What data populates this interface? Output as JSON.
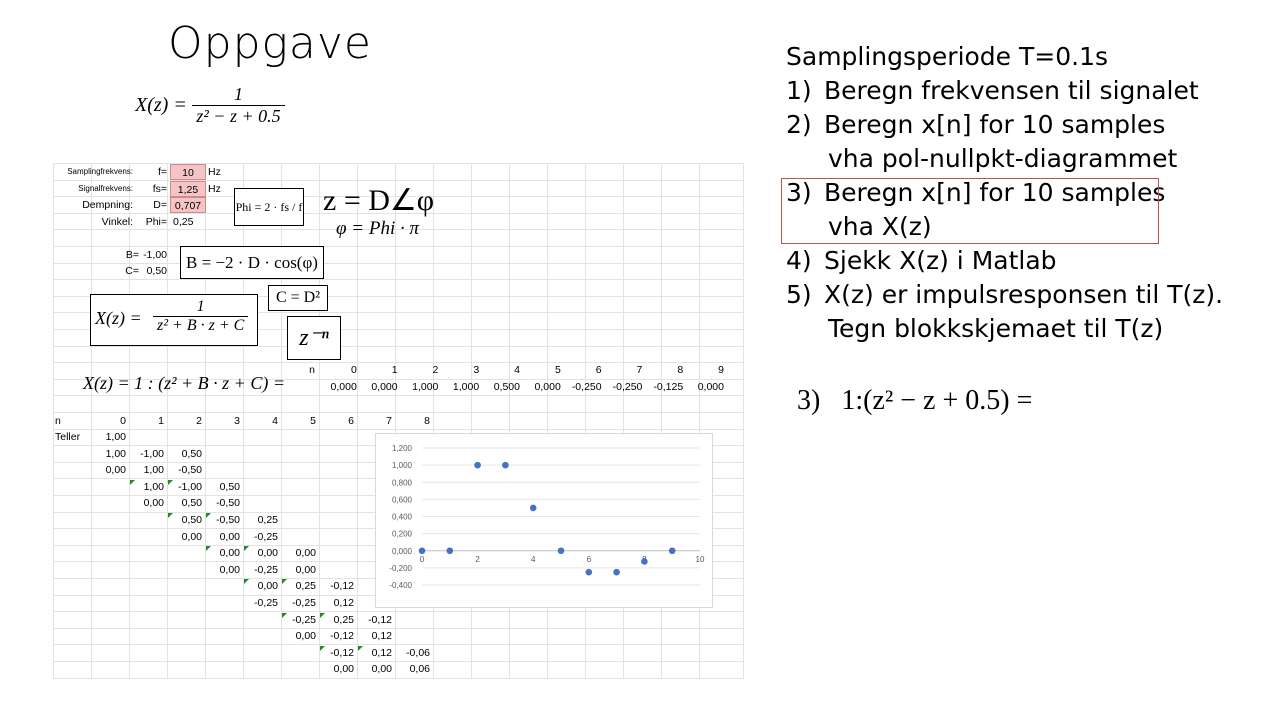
{
  "slide": {
    "title": "Oppgave"
  },
  "formula_top": {
    "lhs": "X(z) =",
    "numerator": "1",
    "denominator": "z² − z + 0.5"
  },
  "sheet": {
    "rows_top": [
      {
        "label": "Samplingfrekvens:",
        "var": "f=",
        "value": "10",
        "unit": "Hz"
      },
      {
        "label": "Signalfrekvens:",
        "var": "fs=",
        "value": "1,25",
        "unit": "Hz"
      },
      {
        "label": "Dempning:",
        "var": "D=",
        "value": "0,707",
        "unit": ""
      },
      {
        "label": "Vinkel:",
        "var": "Phi=",
        "value": "0,25",
        "unit": ""
      }
    ],
    "b_label": "B=",
    "b_value": "-1,00",
    "c_label": "C=",
    "c_value": "0,50",
    "phi_formula": "Phi = 2 · fs / f",
    "z_polar": "z = D∠φ",
    "phi_pi": "φ = Phi · π",
    "b_formula": "B = −2 · D · cos(φ)",
    "c_formula": "C = D²",
    "xz_formula": {
      "lhs": "X(z) =",
      "numerator": "1",
      "denominator": "z² + B · z + C"
    },
    "z_neg_n": "z⁻ⁿ",
    "xz_division": "X(z) = 1 : (z² + B · z + C) =",
    "n_header": "n",
    "result_n": [
      "0",
      "1",
      "2",
      "3",
      "4",
      "5",
      "6",
      "7",
      "8",
      "9"
    ],
    "result_x": [
      "0,000",
      "0,000",
      "1,000",
      "1,000",
      "0,500",
      "0,000",
      "-0,250",
      "-0,250",
      "-0,125",
      "0,000"
    ],
    "div_header_n": "n",
    "div_cols": [
      "0",
      "1",
      "2",
      "3",
      "4",
      "5",
      "6",
      "7",
      "8"
    ],
    "teller_label": "Teller",
    "div_rows": [
      [
        "1,00",
        "",
        "",
        "",
        "",
        "",
        "",
        ""
      ],
      [
        "1,00",
        "-1,00",
        "0,50",
        "",
        "",
        "",
        "",
        ""
      ],
      [
        "0,00",
        "1,00",
        "-0,50",
        "",
        "",
        "",
        "",
        ""
      ],
      [
        "",
        "1,00",
        "-1,00",
        "0,50",
        "",
        "",
        "",
        ""
      ],
      [
        "",
        "0,00",
        "0,50",
        "-0,50",
        "",
        "",
        "",
        ""
      ],
      [
        "",
        "",
        "0,50",
        "-0,50",
        "0,25",
        "",
        "",
        ""
      ],
      [
        "",
        "",
        "0,00",
        "0,00",
        "-0,25",
        "",
        "",
        ""
      ],
      [
        "",
        "",
        "",
        "0,00",
        "0,00",
        "0,00",
        "",
        ""
      ],
      [
        "",
        "",
        "",
        "0,00",
        "-0,25",
        "0,00",
        "",
        ""
      ],
      [
        "",
        "",
        "",
        "",
        "0,00",
        "0,25",
        "-0,12",
        ""
      ],
      [
        "",
        "",
        "",
        "",
        "-0,25",
        "-0,25",
        "0,12",
        ""
      ],
      [
        "",
        "",
        "",
        "",
        "",
        "-0,25",
        "0,25",
        "-0,12"
      ],
      [
        "",
        "",
        "",
        "",
        "",
        "0,00",
        "-0,12",
        "0,12"
      ],
      [
        "",
        "",
        "",
        "",
        "",
        "",
        "-0,12",
        "0,12",
        "-0,06"
      ],
      [
        "",
        "",
        "",
        "",
        "",
        "",
        "0,00",
        "0,00",
        "0,06"
      ]
    ]
  },
  "chart_data": {
    "type": "scatter",
    "x": [
      0,
      1,
      2,
      3,
      4,
      5,
      6,
      7,
      8,
      9
    ],
    "y": [
      0,
      0,
      1,
      1,
      0.5,
      0,
      -0.25,
      -0.25,
      -0.125,
      0
    ],
    "xlim": [
      0,
      10
    ],
    "ylim": [
      -0.4,
      1.2
    ],
    "yticks": [
      "1,200",
      "1,000",
      "0,800",
      "0,600",
      "0,400",
      "0,200",
      "0,000",
      "-0,200",
      "-0,400"
    ],
    "xticks": [
      "0",
      "2",
      "4",
      "6",
      "8",
      "10"
    ],
    "grid": true,
    "color": "#4472c4"
  },
  "tasks": {
    "heading": "Samplingsperiode T=0.1s",
    "items": [
      {
        "num": "1)",
        "text": "Beregn frekvensen til signalet",
        "cont": ""
      },
      {
        "num": "2)",
        "text": "Beregn x[n] for 10 samples",
        "cont": "vha pol-nullpkt-diagrammet"
      },
      {
        "num": "3)",
        "text": "Beregn x[n] for 10 samples",
        "cont": "vha X(z)"
      },
      {
        "num": "4)",
        "text": "Sjekk X(z) i Matlab",
        "cont": ""
      },
      {
        "num": "5)",
        "text": "X(z) er impulsresponsen til T(z).",
        "cont": "Tegn blokkskjemaet til T(z)"
      }
    ],
    "highlight_color": "#c0504d"
  },
  "answer": {
    "num": "3)",
    "expr": "1:(z² − z + 0.5) ="
  }
}
